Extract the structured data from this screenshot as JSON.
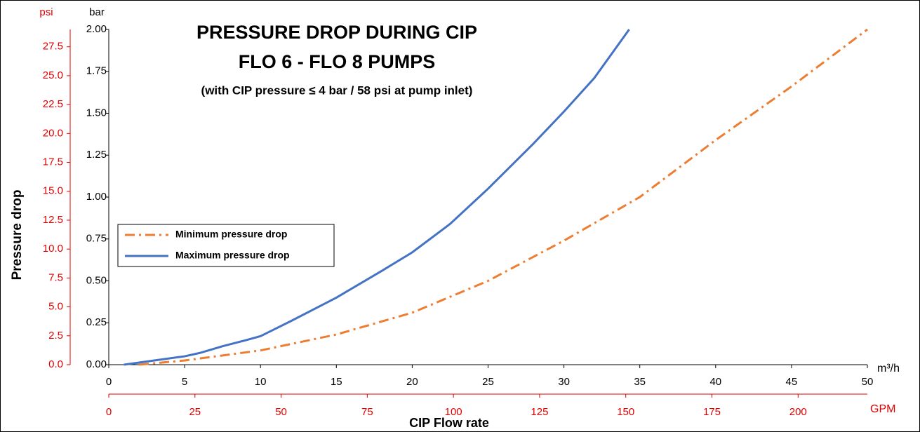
{
  "chart_data": {
    "type": "line",
    "title": "PRESSURE DROP DURING CIP",
    "title_line2": "FLO 6 - FLO 8 PUMPS",
    "subtitle": "(with CIP pressure ≤ 4 bar / 58 psi at pump inlet)",
    "ylabel": "Pressure drop",
    "xlabel": "CIP Flow rate",
    "y_unit": "bar",
    "y2_unit": "psi",
    "x_unit": "m³/h",
    "x2_unit": "GPM",
    "axis_color_secondary": "#e00000",
    "xlim": [
      0,
      50
    ],
    "xticks": [
      0,
      5,
      10,
      15,
      20,
      25,
      30,
      35,
      40,
      45,
      50
    ],
    "x2lim": [
      0,
      220.1
    ],
    "x2ticks": [
      0,
      25,
      50,
      75,
      100,
      125,
      150,
      175,
      200
    ],
    "ylim": [
      0,
      2
    ],
    "yticks": [
      {
        "value": 0,
        "label": "0.00"
      },
      {
        "value": 0.25,
        "label": "0.25"
      },
      {
        "value": 0.5,
        "label": "0.50"
      },
      {
        "value": 0.75,
        "label": "0.75"
      },
      {
        "value": 1,
        "label": "1.00"
      },
      {
        "value": 1.25,
        "label": "1.25"
      },
      {
        "value": 1.5,
        "label": "1.50"
      },
      {
        "value": 1.75,
        "label": "1.75"
      },
      {
        "value": 2,
        "label": "2.00"
      }
    ],
    "y2lim": [
      0,
      29.0
    ],
    "y2ticks": [
      {
        "value": 0,
        "label": "0.0"
      },
      2.5,
      {
        "value": 5,
        "label": "5.0"
      },
      7.5,
      {
        "value": 10,
        "label": "10.0"
      },
      12.5,
      {
        "value": 15,
        "label": "15.0"
      },
      17.5,
      {
        "value": 20,
        "label": "20.0"
      },
      22.5,
      {
        "value": 25,
        "label": "25.0"
      },
      27.5
    ],
    "legend": "center-left",
    "series": [
      {
        "name": "Minimum pressure drop",
        "color": "#ed7d31",
        "linestyle": "dashdot",
        "x": [
          2,
          5,
          10,
          15,
          20,
          25,
          30,
          35,
          40,
          45,
          50
        ],
        "values": [
          0,
          0.025,
          0.085,
          0.18,
          0.31,
          0.5,
          0.74,
          1.0,
          1.34,
          1.66,
          2.0
        ]
      },
      {
        "name": "Maximum pressure drop",
        "color": "#4472c4",
        "linestyle": "solid",
        "x": [
          1,
          3,
          5,
          6,
          7.5,
          9,
          10,
          12,
          15,
          18,
          20,
          22.5,
          25,
          28,
          30,
          32,
          34.3
        ],
        "values": [
          0,
          0.025,
          0.05,
          0.07,
          0.11,
          0.145,
          0.17,
          0.26,
          0.4,
          0.56,
          0.67,
          0.84,
          1.05,
          1.32,
          1.51,
          1.71,
          2.0
        ]
      }
    ]
  }
}
